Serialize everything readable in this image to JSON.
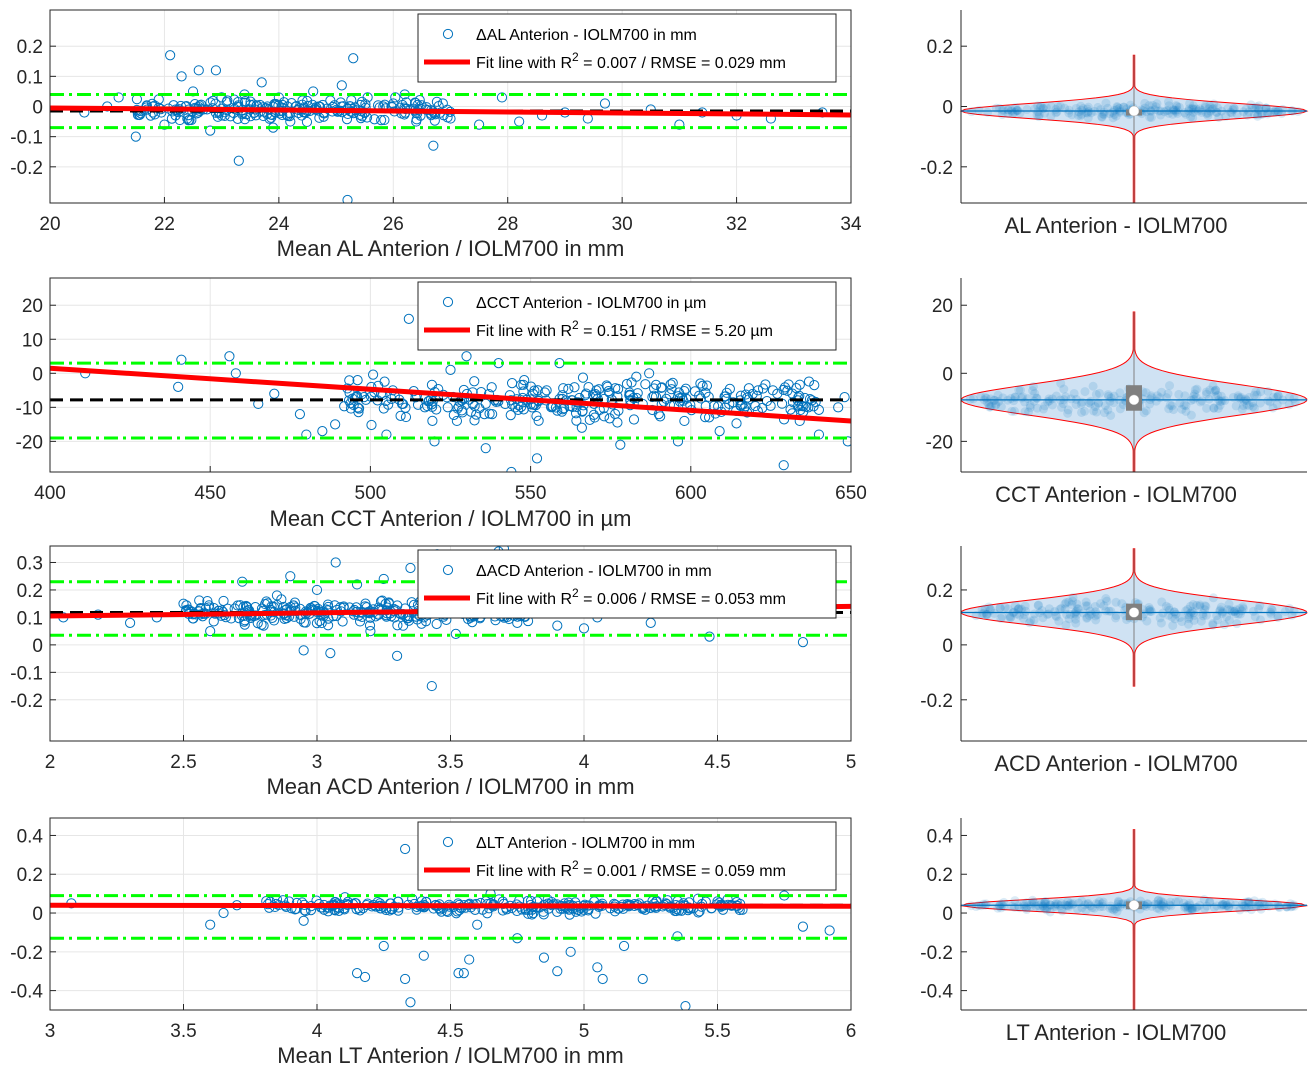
{
  "colors": {
    "points": "#0072BD",
    "fit": "#FF0000",
    "mean": "#000000",
    "loa": "#00FF00",
    "violin_edge": "#FF0000",
    "violin_fill": "#cfe2f3",
    "box": "#808080",
    "median": "#FFFFFF",
    "grid": "#E6E6E6"
  },
  "chart_data": [
    {
      "type": "scatter",
      "xlabel": "Mean AL Anterion / IOLM700 in mm",
      "xlim": [
        20,
        34
      ],
      "ylim": [
        -0.32,
        0.32
      ],
      "xticks": [
        "20",
        "22",
        "24",
        "26",
        "28",
        "30",
        "32",
        "34"
      ],
      "yticks": [
        "-0.2",
        "-0.1",
        "0",
        "0.1",
        "0.2"
      ],
      "legend": {
        "series": "ΔAL Anterion - IOLM700 in mm",
        "fit_prefix": "Fit line with R",
        "fit_sup": "2",
        "fit_suffix": " = 0.007 / RMSE = 0.029 mm",
        "position": "top-right"
      },
      "mean_diff": -0.015,
      "loa": [
        0.04,
        -0.07
      ],
      "fit_line": {
        "x": [
          20,
          34
        ],
        "y": [
          -0.005,
          -0.028
        ]
      },
      "points": [
        [
          22.1,
          0.17
        ],
        [
          25.3,
          0.16
        ],
        [
          22.6,
          0.12
        ],
        [
          22.9,
          0.12
        ],
        [
          23.3,
          -0.18
        ],
        [
          25.2,
          -0.31
        ],
        [
          26.7,
          -0.13
        ],
        [
          22.3,
          0.1
        ],
        [
          23.7,
          0.08
        ],
        [
          21.2,
          0.03
        ],
        [
          21.8,
          -0.02
        ],
        [
          22.4,
          -0.04
        ],
        [
          23.1,
          0.02
        ],
        [
          23.5,
          -0.01
        ],
        [
          24.0,
          0.03
        ],
        [
          24.4,
          -0.03
        ],
        [
          24.9,
          0.02
        ],
        [
          25.5,
          -0.02
        ],
        [
          26.0,
          0.01
        ],
        [
          26.4,
          -0.05
        ],
        [
          27.0,
          -0.04
        ],
        [
          27.5,
          -0.06
        ],
        [
          28.2,
          -0.05
        ],
        [
          29.0,
          -0.02
        ],
        [
          29.4,
          -0.04
        ],
        [
          31.4,
          -0.02
        ],
        [
          32.0,
          -0.03
        ],
        [
          33.5,
          -0.02
        ],
        [
          20.6,
          -0.02
        ],
        [
          21.0,
          0.0
        ],
        [
          22.0,
          -0.06
        ],
        [
          22.8,
          -0.08
        ],
        [
          23.9,
          -0.07
        ],
        [
          24.6,
          0.05
        ],
        [
          25.1,
          0.07
        ],
        [
          26.2,
          0.04
        ],
        [
          27.9,
          0.03
        ],
        [
          28.6,
          -0.03
        ],
        [
          29.7,
          0.01
        ],
        [
          30.5,
          -0.01
        ],
        [
          31.0,
          -0.06
        ],
        [
          32.6,
          -0.04
        ],
        [
          22.5,
          0.05
        ],
        [
          23.0,
          -0.03
        ],
        [
          23.8,
          0.0
        ],
        [
          24.2,
          -0.05
        ],
        [
          24.7,
          0.0
        ],
        [
          21.5,
          -0.1
        ],
        [
          22.2,
          -0.01
        ],
        [
          23.4,
          0.04
        ]
      ],
      "cloud": {
        "x": [
          21.5,
          27.0
        ],
        "y": [
          -0.06,
          0.04
        ],
        "n": 240,
        "seed": 3
      },
      "violin": {
        "label": "AL Anterion - IOLM700",
        "ylim": [
          -0.32,
          0.32
        ],
        "yticks": [
          "-0.2",
          "0",
          "0.2"
        ],
        "center": -0.015,
        "range": [
          -0.32,
          0.17
        ],
        "core": 0.025,
        "tail": 0.002,
        "box": [
          -0.02,
          -0.01
        ]
      }
    },
    {
      "type": "scatter",
      "xlabel": "Mean CCT Anterion / IOLM700 in µm",
      "xlim": [
        400,
        650
      ],
      "ylim": [
        -29,
        28
      ],
      "xticks": [
        "400",
        "450",
        "500",
        "550",
        "600",
        "650"
      ],
      "yticks": [
        "-20",
        "-10",
        "0",
        "10",
        "20"
      ],
      "legend": {
        "series": "ΔCCT Anterion - IOLM700 in µm",
        "fit_prefix": "Fit line with R",
        "fit_sup": "2",
        "fit_suffix": " = 0.151 / RMSE = 5.20 µm",
        "position": "top-right"
      },
      "mean_diff": -7.8,
      "loa": [
        3.0,
        -19.0
      ],
      "fit_line": {
        "x": [
          400,
          650
        ],
        "y": [
          1.5,
          -14.0
        ]
      },
      "points": [
        [
          411,
          0
        ],
        [
          440,
          -4
        ],
        [
          441,
          4
        ],
        [
          456,
          5
        ],
        [
          458,
          0
        ],
        [
          465,
          -9
        ],
        [
          470,
          -6
        ],
        [
          478,
          -12
        ],
        [
          480,
          -18
        ],
        [
          485,
          -17
        ],
        [
          489,
          -15
        ],
        [
          496,
          -2
        ],
        [
          498,
          -7
        ],
        [
          512,
          16
        ],
        [
          527,
          -14
        ],
        [
          530,
          5
        ],
        [
          536,
          -22
        ],
        [
          540,
          3
        ],
        [
          544,
          -29
        ],
        [
          552,
          -25
        ],
        [
          555,
          -5
        ],
        [
          559,
          3
        ],
        [
          566,
          -16
        ],
        [
          570,
          -13
        ],
        [
          578,
          -21
        ],
        [
          583,
          -1
        ],
        [
          587,
          0
        ],
        [
          590,
          -12
        ],
        [
          596,
          -20
        ],
        [
          603,
          -3
        ],
        [
          609,
          -17
        ],
        [
          612,
          -9
        ],
        [
          621,
          -5
        ],
        [
          629,
          -27
        ],
        [
          634,
          -14
        ],
        [
          640,
          -18
        ],
        [
          646,
          -10
        ],
        [
          648,
          -7
        ],
        [
          649,
          -20
        ],
        [
          507,
          -5
        ],
        [
          517,
          -10
        ],
        [
          525,
          1
        ],
        [
          538,
          -12
        ],
        [
          548,
          -2
        ],
        [
          561,
          -8
        ],
        [
          574,
          -4
        ],
        [
          585,
          -9
        ],
        [
          598,
          -14
        ],
        [
          520,
          -20
        ],
        [
          505,
          -18
        ]
      ],
      "cloud": {
        "x": [
          490,
          640
        ],
        "y": [
          -16,
          0
        ],
        "n": 300,
        "seed": 11
      },
      "violin": {
        "label": "CCT Anterion - IOLM700",
        "ylim": [
          -29,
          28
        ],
        "yticks": [
          "-20",
          "0",
          "20"
        ],
        "center": -7.8,
        "range": [
          -29,
          18
        ],
        "core": 4.5,
        "tail": 0.6,
        "box": [
          -11.0,
          -3.5
        ]
      }
    },
    {
      "type": "scatter",
      "xlabel": "Mean ACD Anterion / IOLM700 in mm",
      "xlim": [
        2,
        5
      ],
      "ylim": [
        -0.35,
        0.36
      ],
      "xticks": [
        "2",
        "2.5",
        "3",
        "3.5",
        "4",
        "4.5",
        "5"
      ],
      "yticks": [
        "-0.2",
        "-0.1",
        "0",
        "0.1",
        "0.2",
        "0.3"
      ],
      "legend": {
        "series": "ΔACD Anterion - IOLM700 in mm",
        "fit_prefix": "Fit line with R",
        "fit_sup": "2",
        "fit_suffix": " = 0.006 / RMSE = 0.053 mm",
        "position": "top-right"
      },
      "mean_diff": 0.118,
      "loa": [
        0.23,
        0.035
      ],
      "fit_line": {
        "x": [
          2,
          5
        ],
        "y": [
          0.105,
          0.14
        ]
      },
      "points": [
        [
          2.05,
          0.1
        ],
        [
          2.18,
          0.11
        ],
        [
          2.3,
          0.08
        ],
        [
          2.5,
          0.15
        ],
        [
          2.72,
          0.23
        ],
        [
          2.9,
          0.25
        ],
        [
          3.07,
          0.3
        ],
        [
          3.45,
          0.33
        ],
        [
          3.7,
          0.35
        ],
        [
          3.68,
          0.34
        ],
        [
          2.95,
          -0.02
        ],
        [
          3.05,
          -0.03
        ],
        [
          3.3,
          -0.04
        ],
        [
          3.43,
          -0.15
        ],
        [
          3.52,
          0.04
        ],
        [
          3.9,
          0.07
        ],
        [
          4.05,
          0.1
        ],
        [
          4.25,
          0.08
        ],
        [
          4.47,
          0.03
        ],
        [
          4.6,
          0.17
        ],
        [
          4.82,
          0.01
        ],
        [
          3.15,
          0.22
        ],
        [
          3.25,
          0.24
        ],
        [
          3.35,
          0.28
        ],
        [
          2.6,
          0.05
        ],
        [
          2.8,
          0.07
        ],
        [
          2.85,
          0.18
        ],
        [
          3.0,
          0.2
        ],
        [
          3.2,
          0.05
        ],
        [
          3.4,
          0.1
        ],
        [
          3.6,
          0.14
        ],
        [
          3.8,
          0.12
        ],
        [
          4.0,
          0.06
        ],
        [
          4.15,
          0.15
        ],
        [
          2.4,
          0.1
        ],
        [
          2.65,
          0.16
        ],
        [
          3.1,
          0.14
        ],
        [
          3.55,
          0.18
        ],
        [
          3.75,
          0.08
        ]
      ],
      "cloud": {
        "x": [
          2.5,
          3.8
        ],
        "y": [
          0.06,
          0.18
        ],
        "n": 300,
        "seed": 7
      },
      "violin": {
        "label": "ACD Anterion - IOLM700",
        "ylim": [
          -0.35,
          0.36
        ],
        "yticks": [
          "-0.2",
          "0",
          "0.2"
        ],
        "center": 0.118,
        "range": [
          -0.15,
          0.35
        ],
        "core": 0.045,
        "tail": 0.004,
        "box": [
          0.09,
          0.15
        ]
      }
    },
    {
      "type": "scatter",
      "xlabel": "Mean LT Anterion / IOLM700 in mm",
      "xlim": [
        3,
        6
      ],
      "ylim": [
        -0.5,
        0.49
      ],
      "xticks": [
        "3",
        "3.5",
        "4",
        "4.5",
        "5",
        "5.5",
        "6"
      ],
      "yticks": [
        "-0.4",
        "-0.2",
        "0",
        "0.2",
        "0.4"
      ],
      "legend": {
        "series": "ΔLT Anterion - IOLM700 in mm",
        "fit_prefix": "Fit line with R",
        "fit_sup": "2",
        "fit_suffix": " = 0.001 / RMSE = 0.059 mm",
        "position": "top-right"
      },
      "mean_diff": 0.04,
      "loa": [
        0.09,
        -0.13
      ],
      "fit_line": {
        "x": [
          3,
          6
        ],
        "y": [
          0.04,
          0.035
        ]
      },
      "points": [
        [
          3.08,
          0.05
        ],
        [
          3.6,
          -0.06
        ],
        [
          3.65,
          0.0
        ],
        [
          4.15,
          -0.31
        ],
        [
          4.18,
          -0.33
        ],
        [
          4.33,
          0.33
        ],
        [
          4.35,
          -0.46
        ],
        [
          4.33,
          -0.34
        ],
        [
          4.4,
          -0.22
        ],
        [
          4.53,
          -0.31
        ],
        [
          4.55,
          -0.31
        ],
        [
          4.57,
          -0.24
        ],
        [
          4.85,
          -0.23
        ],
        [
          4.9,
          -0.3
        ],
        [
          5.05,
          -0.28
        ],
        [
          5.07,
          -0.34
        ],
        [
          5.22,
          -0.34
        ],
        [
          5.38,
          -0.48
        ],
        [
          5.02,
          0.43
        ],
        [
          5.1,
          0.27
        ],
        [
          5.35,
          -0.12
        ],
        [
          5.82,
          -0.07
        ],
        [
          5.92,
          -0.09
        ],
        [
          3.85,
          0.07
        ],
        [
          3.7,
          0.04
        ],
        [
          3.95,
          -0.04
        ],
        [
          4.6,
          -0.06
        ],
        [
          4.75,
          -0.13
        ],
        [
          4.95,
          -0.2
        ],
        [
          5.15,
          -0.17
        ],
        [
          5.5,
          0.06
        ],
        [
          5.75,
          0.09
        ],
        [
          4.25,
          -0.17
        ],
        [
          4.65,
          0.1
        ]
      ],
      "cloud": {
        "x": [
          3.8,
          5.6
        ],
        "y": [
          -0.02,
          0.09
        ],
        "n": 300,
        "seed": 19
      },
      "violin": {
        "label": "LT Anterion - IOLM700",
        "ylim": [
          -0.5,
          0.49
        ],
        "yticks": [
          "-0.4",
          "-0.2",
          "0",
          "0.2",
          "0.4"
        ],
        "center": 0.04,
        "range": [
          -0.5,
          0.43
        ],
        "core": 0.03,
        "tail": 0.004,
        "box": [
          0.02,
          0.06
        ]
      }
    }
  ]
}
